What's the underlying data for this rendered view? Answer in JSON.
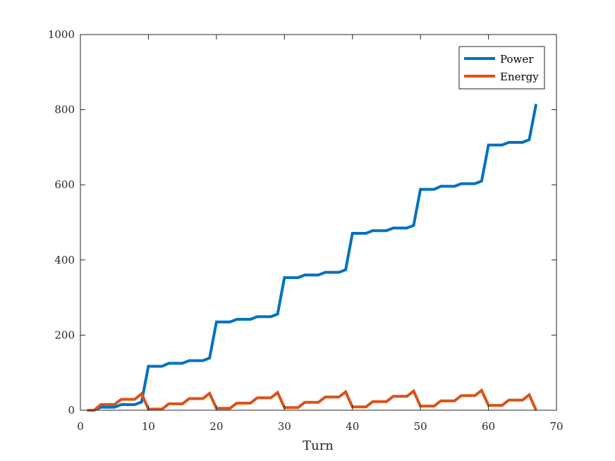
{
  "chart_data": {
    "type": "line",
    "title": "",
    "xlabel": "Turn",
    "ylabel": "",
    "xlim": [
      0,
      70
    ],
    "ylim": [
      0,
      1000
    ],
    "xticks": [
      "0",
      "10",
      "20",
      "30",
      "40",
      "50",
      "60",
      "70"
    ],
    "yticks": [
      "0",
      "200",
      "400",
      "600",
      "800",
      "1000"
    ],
    "grid": false,
    "legend_position": "top-right",
    "series": [
      {
        "name": "Power",
        "color": "#0072BD",
        "x": [
          1,
          2,
          3,
          4,
          5,
          6,
          7,
          8,
          9,
          10,
          11,
          12,
          13,
          14,
          15,
          16,
          17,
          18,
          19,
          20,
          21,
          22,
          23,
          24,
          25,
          26,
          27,
          28,
          29,
          30,
          31,
          32,
          33,
          34,
          35,
          36,
          37,
          38,
          39,
          40,
          41,
          42,
          43,
          44,
          45,
          46,
          47,
          48,
          49,
          50,
          51,
          52,
          53,
          54,
          55,
          56,
          57,
          58,
          59,
          60,
          61,
          62,
          63,
          64,
          65,
          66,
          67
        ],
        "y": [
          0,
          0,
          8,
          8,
          8,
          15,
          15,
          15,
          22,
          117,
          117,
          117,
          125,
          125,
          125,
          132,
          132,
          132,
          139,
          235,
          235,
          235,
          242,
          242,
          242,
          249,
          249,
          249,
          256,
          353,
          353,
          353,
          360,
          360,
          360,
          367,
          367,
          367,
          374,
          471,
          471,
          471,
          478,
          478,
          478,
          485,
          485,
          485,
          492,
          588,
          588,
          588,
          596,
          596,
          596,
          603,
          603,
          603,
          610,
          706,
          706,
          706,
          713,
          713,
          713,
          720,
          815
        ]
      },
      {
        "name": "Energy",
        "color": "#D95319",
        "x": [
          1,
          2,
          3,
          4,
          5,
          6,
          7,
          8,
          9,
          10,
          11,
          12,
          13,
          14,
          15,
          16,
          17,
          18,
          19,
          20,
          21,
          22,
          23,
          24,
          25,
          26,
          27,
          28,
          29,
          30,
          31,
          32,
          33,
          34,
          35,
          36,
          37,
          38,
          39,
          40,
          41,
          42,
          43,
          44,
          45,
          46,
          47,
          48,
          49,
          50,
          51,
          52,
          53,
          54,
          55,
          56,
          57,
          58,
          59,
          60,
          61,
          62,
          63,
          64,
          65,
          66,
          67
        ],
        "y": [
          0,
          0,
          15,
          15,
          15,
          29,
          29,
          29,
          44,
          3,
          3,
          3,
          17,
          17,
          17,
          31,
          31,
          31,
          45,
          5,
          5,
          5,
          19,
          19,
          19,
          33,
          33,
          33,
          47,
          7,
          7,
          7,
          21,
          21,
          21,
          35,
          35,
          35,
          49,
          9,
          9,
          9,
          23,
          23,
          23,
          37,
          37,
          37,
          51,
          11,
          11,
          11,
          25,
          25,
          25,
          39,
          39,
          39,
          53,
          13,
          13,
          13,
          27,
          27,
          27,
          41,
          0
        ]
      }
    ]
  }
}
